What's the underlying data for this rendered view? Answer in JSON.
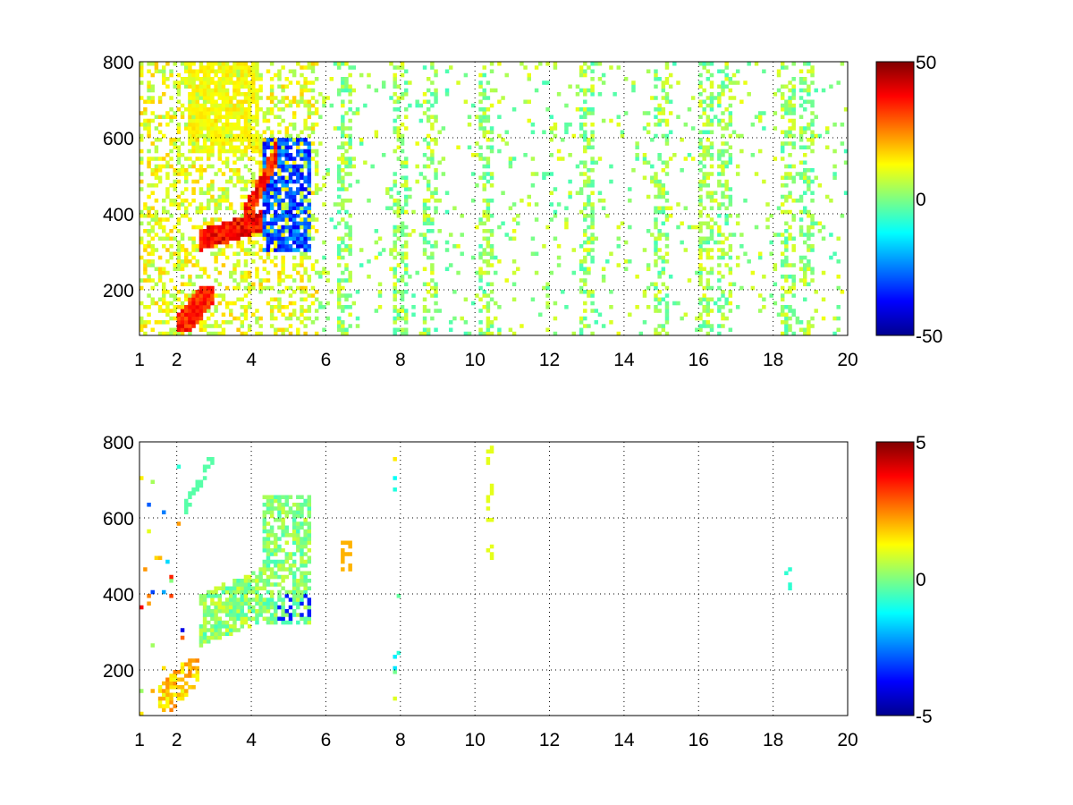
{
  "chart_data": [
    {
      "type": "heatmap",
      "panel": "top",
      "xlim": [
        1,
        20
      ],
      "ylim": [
        80,
        800
      ],
      "x_ticks": [
        1,
        2,
        4,
        6,
        8,
        10,
        12,
        14,
        16,
        18,
        20
      ],
      "x_tick_labels": [
        "1",
        "2",
        "4",
        "6",
        "8",
        "10",
        "12",
        "14",
        "16",
        "18",
        "20"
      ],
      "y_ticks": [
        200,
        400,
        600,
        800
      ],
      "y_tick_labels": [
        "200",
        "400",
        "600",
        "800"
      ],
      "grid": true,
      "colormap": "jet",
      "clim": [
        -50,
        50
      ],
      "colorbar_ticks": [
        50,
        0,
        -50
      ],
      "colorbar_tick_labels": [
        "50",
        "0",
        "-50"
      ],
      "features": [
        {
          "x": [
            2.0,
            3.0
          ],
          "y": [
            90,
            210
          ],
          "value": 30
        },
        {
          "x": [
            2.7,
            4.3
          ],
          "y": [
            300,
            380
          ],
          "value": 38
        },
        {
          "x": [
            3.8,
            4.7
          ],
          "y": [
            360,
            560
          ],
          "value": 32
        },
        {
          "x": [
            4.3,
            5.6
          ],
          "y": [
            320,
            600
          ],
          "value": -30
        },
        {
          "x": [
            2.3,
            4.2
          ],
          "y": [
            560,
            800
          ],
          "value": 12
        },
        {
          "x": [
            1.0,
            5.8
          ],
          "y": [
            80,
            800
          ],
          "value": 8
        },
        {
          "x": [
            6.0,
            20.0
          ],
          "y": [
            80,
            800
          ],
          "value": 0
        }
      ]
    },
    {
      "type": "heatmap",
      "panel": "bottom",
      "xlim": [
        1,
        20
      ],
      "ylim": [
        80,
        800
      ],
      "x_ticks": [
        1,
        2,
        4,
        6,
        8,
        10,
        12,
        14,
        16,
        18,
        20
      ],
      "x_tick_labels": [
        "1",
        "2",
        "4",
        "6",
        "8",
        "10",
        "12",
        "14",
        "16",
        "18",
        "20"
      ],
      "y_ticks": [
        200,
        400,
        600,
        800
      ],
      "y_tick_labels": [
        "200",
        "400",
        "600",
        "800"
      ],
      "grid": true,
      "colormap": "jet",
      "clim": [
        -5,
        5
      ],
      "colorbar_ticks": [
        5,
        0,
        -5
      ],
      "colorbar_tick_labels": [
        "5",
        "0",
        "-5"
      ],
      "features": [
        {
          "x": [
            1.5,
            2.6
          ],
          "y": [
            90,
            220
          ],
          "value": 1.5
        },
        {
          "x": [
            2.6,
            4.3
          ],
          "y": [
            250,
            420
          ],
          "value": 0.3
        },
        {
          "x": [
            4.3,
            5.6
          ],
          "y": [
            330,
            650
          ],
          "value": 0.2
        },
        {
          "x": [
            4.7,
            5.6
          ],
          "y": [
            300,
            400
          ],
          "value": -3.5
        },
        {
          "x": [
            2.2,
            3.0
          ],
          "y": [
            600,
            760
          ],
          "value": -0.5
        },
        {
          "x": [
            6.4,
            6.7
          ],
          "y": [
            460,
            540
          ],
          "value": 2.0
        },
        {
          "x": [
            10.3,
            10.5
          ],
          "y": [
            480,
            780
          ],
          "value": 1.0
        },
        {
          "x": [
            18.3,
            18.5
          ],
          "y": [
            410,
            480
          ],
          "value": -0.8
        }
      ]
    }
  ]
}
